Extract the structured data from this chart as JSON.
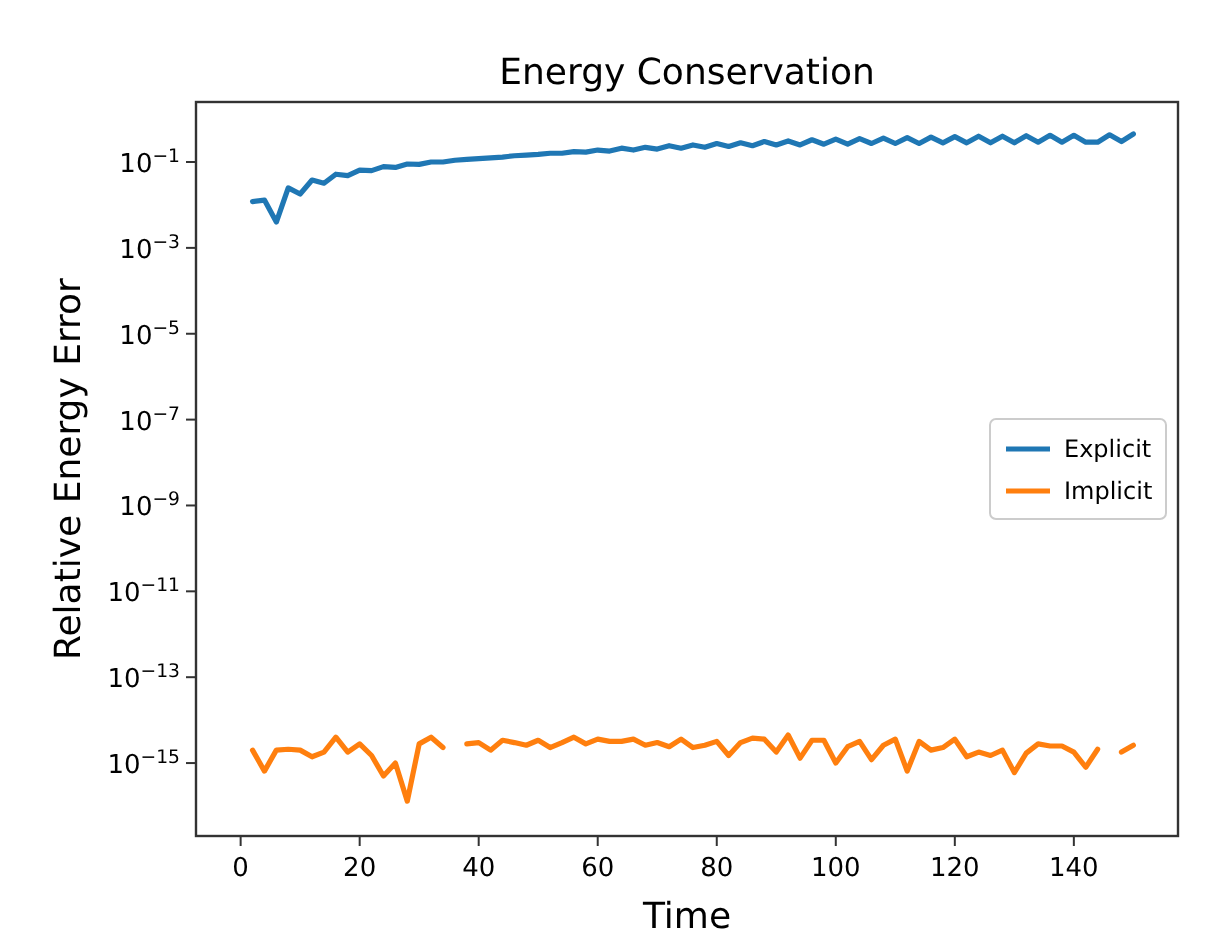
{
  "chart_data": {
    "type": "line",
    "title": "Energy Conservation",
    "xlabel": "Time",
    "ylabel": "Relative Energy Error",
    "log": "y",
    "legend": "right",
    "line_style": "solid",
    "grid": false,
    "x": [
      2,
      4,
      6,
      8,
      10,
      12,
      14,
      16,
      18,
      20,
      22,
      24,
      26,
      28,
      30,
      32,
      34,
      36,
      38,
      40,
      42,
      44,
      46,
      48,
      50,
      52,
      54,
      56,
      58,
      60,
      62,
      64,
      66,
      68,
      70,
      72,
      74,
      76,
      78,
      80,
      82,
      84,
      86,
      88,
      90,
      92,
      94,
      96,
      98,
      100,
      102,
      104,
      106,
      108,
      110,
      112,
      114,
      116,
      118,
      120,
      122,
      124,
      126,
      128,
      130,
      132,
      134,
      136,
      138,
      140,
      142,
      144,
      146,
      148,
      150
    ],
    "xlim": [
      -7.5,
      157.5
    ],
    "xticks": [
      0,
      20,
      40,
      60,
      80,
      100,
      120,
      140
    ],
    "ylim": [
      2e-17,
      2.5
    ],
    "yticks": [
      {
        "value": 0.1,
        "label": "10$^{−1}$"
      },
      {
        "value": 0.001,
        "label": "10$^{−3}$"
      },
      {
        "value": 1e-05,
        "label": "10$^{−5}$"
      },
      {
        "value": 1e-07,
        "label": "10$^{−7}$"
      },
      {
        "value": 1e-09,
        "label": "10$^{−9}$"
      },
      {
        "value": 1e-11,
        "label": "10$^{−11}$"
      },
      {
        "value": 1e-13,
        "label": "10$^{−13}$"
      },
      {
        "value": 1e-15,
        "label": "10$^{−15}$"
      }
    ],
    "series": [
      {
        "name": "Explicit",
        "color": "#1f77b4",
        "values": [
          0.012,
          0.013,
          0.004,
          0.025,
          0.018,
          0.038,
          0.032,
          0.052,
          0.048,
          0.065,
          0.063,
          0.078,
          0.075,
          0.09,
          0.088,
          0.1,
          0.1,
          0.11,
          0.115,
          0.12,
          0.125,
          0.13,
          0.14,
          0.145,
          0.15,
          0.16,
          0.16,
          0.175,
          0.17,
          0.19,
          0.18,
          0.21,
          0.19,
          0.22,
          0.2,
          0.24,
          0.21,
          0.25,
          0.22,
          0.27,
          0.23,
          0.28,
          0.24,
          0.3,
          0.25,
          0.31,
          0.25,
          0.33,
          0.26,
          0.34,
          0.26,
          0.35,
          0.27,
          0.36,
          0.27,
          0.37,
          0.27,
          0.38,
          0.28,
          0.39,
          0.28,
          0.4,
          0.28,
          0.4,
          0.28,
          0.41,
          0.29,
          0.42,
          0.29,
          0.42,
          0.29,
          0.29,
          0.43,
          0.3,
          0.45
        ]
      },
      {
        "name": "Implicit",
        "color": "#ff7f0e",
        "values": [
          2e-15,
          6.5e-16,
          2e-15,
          2.1e-15,
          2e-15,
          1.4e-15,
          1.8e-15,
          4e-15,
          1.8e-15,
          2.8e-15,
          1.5e-15,
          5e-16,
          1e-15,
          1.3e-16,
          2.8e-15,
          4e-15,
          2.3e-15,
          null,
          2.8e-15,
          3e-15,
          2e-15,
          3.4e-15,
          3e-15,
          2.6e-15,
          3.4e-15,
          2.3e-15,
          3e-15,
          4e-15,
          2.8e-15,
          3.6e-15,
          3.2e-15,
          3.2e-15,
          3.6e-15,
          2.6e-15,
          3e-15,
          2.4e-15,
          3.6e-15,
          2.3e-15,
          2.6e-15,
          3.2e-15,
          1.5e-15,
          3e-15,
          3.8e-15,
          3.6e-15,
          1.8e-15,
          4.5e-15,
          1.3e-15,
          3.4e-15,
          3.4e-15,
          1e-15,
          2.4e-15,
          3.2e-15,
          1.2e-15,
          2.6e-15,
          3.6e-15,
          6.5e-16,
          3.2e-15,
          2e-15,
          2.3e-15,
          3.6e-15,
          1.4e-15,
          1.8e-15,
          1.5e-15,
          2e-15,
          6e-16,
          1.7e-15,
          2.8e-15,
          2.5e-15,
          2.5e-15,
          1.8e-15,
          8e-16,
          2.1e-15,
          null,
          1.8e-15,
          2.6e-15
        ]
      }
    ]
  }
}
